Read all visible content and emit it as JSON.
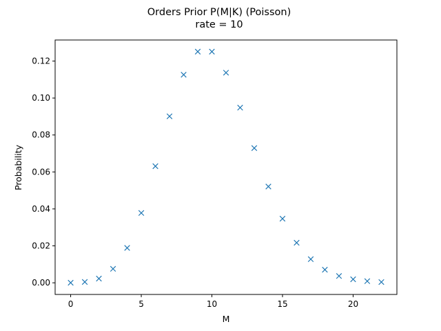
{
  "chart_data": {
    "type": "scatter",
    "title": "Orders Prior P(M|K) (Poisson)",
    "subtitle": "rate = 10",
    "xlabel": "M",
    "ylabel": "Probability",
    "xlim": [
      -1.1,
      23.1
    ],
    "ylim": [
      -0.0063,
      0.1314
    ],
    "xticks": [
      0,
      5,
      10,
      15,
      20
    ],
    "yticks": [
      0.0,
      0.02,
      0.04,
      0.06,
      0.08,
      0.1,
      0.12
    ],
    "ytick_labels": [
      "0.00",
      "0.02",
      "0.04",
      "0.06",
      "0.08",
      "0.10",
      "0.12"
    ],
    "grid": false,
    "marker": "x",
    "color": "#1f77b4",
    "series": [
      {
        "x": [
          0,
          1,
          2,
          3,
          4,
          5,
          6,
          7,
          8,
          9,
          10,
          11,
          12,
          13,
          14,
          15,
          16,
          17,
          18,
          19,
          20,
          21,
          22
        ],
        "y": [
          4.54e-05,
          0.000454,
          0.00227,
          0.00757,
          0.0189,
          0.0378,
          0.0631,
          0.0901,
          0.1126,
          0.1251,
          0.1251,
          0.1137,
          0.0948,
          0.0729,
          0.0521,
          0.0347,
          0.0217,
          0.0128,
          0.0071,
          0.0037,
          0.0019,
          0.0009,
          0.0004
        ]
      }
    ]
  }
}
